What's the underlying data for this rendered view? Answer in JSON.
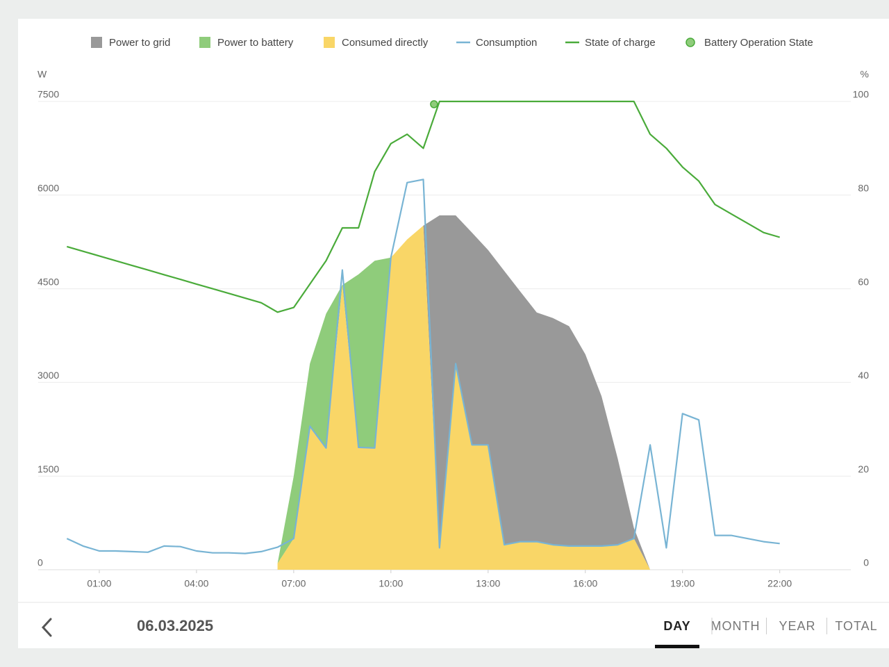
{
  "chart_data": {
    "type": "area",
    "ylabel": "W",
    "y2label": "%",
    "xlim": [
      0,
      24
    ],
    "xticks": [
      {
        "value": 1,
        "label": "01:00"
      },
      {
        "value": 4,
        "label": "04:00"
      },
      {
        "value": 7,
        "label": "07:00"
      },
      {
        "value": 10,
        "label": "10:00"
      },
      {
        "value": 13,
        "label": "13:00"
      },
      {
        "value": 16,
        "label": "16:00"
      },
      {
        "value": 19,
        "label": "19:00"
      },
      {
        "value": 22,
        "label": "22:00"
      }
    ],
    "ylim": [
      0,
      7500
    ],
    "yticks": [
      0,
      1500,
      3000,
      4500,
      6000,
      7500
    ],
    "y2lim": [
      0,
      100
    ],
    "y2ticks": [
      0,
      20,
      40,
      60,
      80,
      100
    ],
    "grid": true,
    "legend": "top",
    "series": [
      {
        "name": "Power to grid",
        "type": "area",
        "color": "#999999",
        "x": [
          6.5,
          7,
          7.5,
          8,
          8.5,
          9,
          9.5,
          10,
          10.5,
          11,
          11.5,
          12,
          12.5,
          13,
          13.5,
          14,
          14.5,
          15,
          15.5,
          16,
          16.5,
          17,
          17.5,
          18
        ],
        "values": [
          0,
          0,
          0,
          0,
          0,
          0,
          0,
          0,
          0,
          0,
          5325,
          2375,
          3400,
          3120,
          4385,
          4000,
          3670,
          3630,
          3520,
          3070,
          2400,
          1380,
          170,
          0
        ]
      },
      {
        "name": "Power to battery",
        "type": "area",
        "color": "#8fcc7b",
        "x": [
          6.5,
          7,
          7.5,
          8,
          8.5,
          9,
          9.5,
          10,
          10.5,
          11,
          11.5,
          12,
          12.5,
          13,
          13.5,
          14,
          14.5,
          15,
          15.5,
          16,
          16.5,
          17,
          17.5,
          18
        ],
        "values": [
          0,
          1000,
          1000,
          2150,
          0,
          2770,
          3000,
          0,
          0,
          0,
          0,
          0,
          0,
          0,
          0,
          0,
          0,
          0,
          0,
          0,
          0,
          0,
          0,
          0
        ]
      },
      {
        "name": "Consumed directly",
        "type": "area",
        "color": "#f9d667",
        "x": [
          6.5,
          7,
          7.5,
          8,
          8.5,
          9,
          9.5,
          10,
          10.5,
          11,
          11.5,
          12,
          12.5,
          13,
          13.5,
          14,
          14.5,
          15,
          15.5,
          16,
          16.5,
          17,
          17.5,
          18
        ],
        "values": [
          100,
          500,
          2300,
          1950,
          4560,
          1960,
          1950,
          5000,
          5290,
          5510,
          350,
          3300,
          2000,
          2000,
          400,
          450,
          450,
          400,
          380,
          380,
          380,
          400,
          500,
          0
        ]
      },
      {
        "name": "Consumption",
        "type": "line",
        "color": "#78b4d4",
        "x": [
          0,
          0.5,
          1,
          1.5,
          2,
          2.5,
          3,
          3.5,
          4,
          4.5,
          5,
          5.5,
          6,
          6.5,
          7,
          7.5,
          8,
          8.5,
          9,
          9.5,
          10,
          10.5,
          11,
          11.5,
          12,
          12.5,
          13,
          13.5,
          14,
          14.5,
          15,
          15.5,
          16,
          16.5,
          17,
          17.5,
          18,
          18.5,
          19,
          19.5,
          20,
          20.5,
          21,
          21.5,
          22
        ],
        "values": [
          500,
          380,
          300,
          300,
          290,
          280,
          380,
          370,
          300,
          270,
          270,
          260,
          290,
          360,
          500,
          2300,
          1950,
          4800,
          1960,
          1950,
          5000,
          6200,
          6250,
          350,
          3300,
          2000,
          2000,
          400,
          450,
          450,
          400,
          380,
          380,
          380,
          400,
          500,
          2000,
          350,
          2500,
          2400,
          550,
          550,
          500,
          450,
          420
        ]
      },
      {
        "name": "State of charge",
        "type": "line",
        "axis": "y2",
        "color": "#4aab3a",
        "x": [
          0,
          0.5,
          1,
          1.5,
          2,
          2.5,
          3,
          3.5,
          4,
          4.5,
          5,
          5.5,
          6,
          6.5,
          7,
          7.5,
          8,
          8.5,
          9,
          9.5,
          10,
          10.5,
          11,
          11.5,
          12,
          12.5,
          13,
          13.5,
          14,
          14.5,
          15,
          15.5,
          16,
          16.5,
          17,
          17.5,
          18,
          18.5,
          19,
          19.5,
          20,
          20.5,
          21,
          21.5,
          22
        ],
        "values": [
          69,
          68,
          67,
          66,
          65,
          64,
          63,
          62,
          61,
          60,
          59,
          58,
          57,
          55,
          56,
          61,
          66,
          73,
          73,
          85,
          91,
          93,
          90,
          100,
          100,
          100,
          100,
          100,
          100,
          100,
          100,
          100,
          100,
          100,
          100,
          100,
          93,
          90,
          86,
          83,
          78,
          76,
          74,
          72,
          71
        ]
      },
      {
        "name": "Battery Operation State",
        "type": "scatter",
        "axis": "y2",
        "color": "#8fcc7b",
        "x": [
          11.33
        ],
        "values": [
          100
        ]
      }
    ]
  },
  "footer": {
    "date": "06.03.2025",
    "tabs": [
      "DAY",
      "MONTH",
      "YEAR",
      "TOTAL"
    ],
    "active_tab": 0
  }
}
